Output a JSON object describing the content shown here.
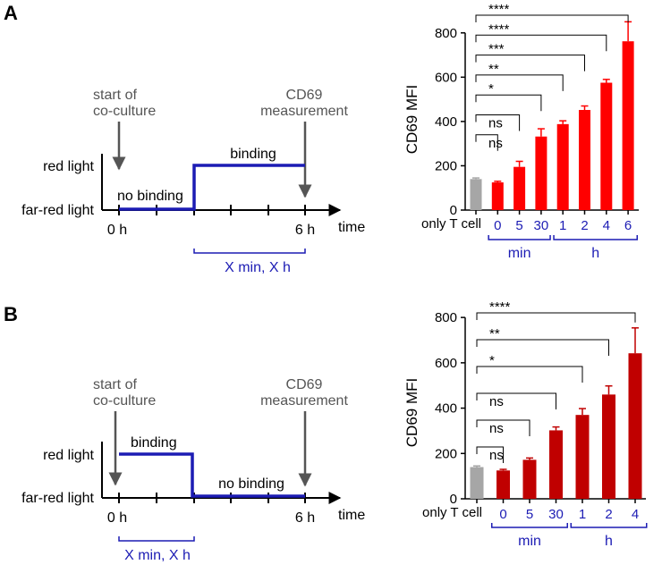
{
  "panels": [
    {
      "label": "A",
      "diagram": {
        "start_label_1": "start of",
        "start_label_2": "co-culture",
        "end_label_1": "CD69",
        "end_label_2": "measurement",
        "y_high": "red light",
        "y_low": "far-red light",
        "left_state": "no binding",
        "right_state": "binding",
        "t0": "0 h",
        "t6": "6 h",
        "time_label": "time",
        "bracket_label": "X min, X h"
      },
      "group_labels": {
        "min": "min",
        "h": "h"
      }
    },
    {
      "label": "B",
      "diagram": {
        "start_label_1": "start of",
        "start_label_2": "co-culture",
        "end_label_1": "CD69",
        "end_label_2": "measurement",
        "y_high": "red light",
        "y_low": "far-red light",
        "left_state": "binding",
        "right_state": "no binding",
        "t0": "0 h",
        "t6": "6 h",
        "time_label": "time",
        "bracket_label": "X min, X h"
      },
      "group_labels": {
        "min": "min",
        "h": "h"
      }
    }
  ],
  "chart_data": [
    {
      "type": "bar",
      "panel": "A",
      "ylabel": "CD69 MFI",
      "ylim": [
        0,
        900
      ],
      "yticks": [
        0,
        200,
        400,
        600,
        800
      ],
      "categories": [
        "only T cell",
        "0",
        "5",
        "30",
        "1",
        "2",
        "4",
        "6"
      ],
      "values": [
        140,
        125,
        195,
        332,
        388,
        452,
        575,
        762
      ],
      "errors": [
        5,
        5,
        25,
        35,
        15,
        18,
        15,
        88
      ],
      "colors": [
        "#a6a6a6",
        "#ff0000",
        "#ff0000",
        "#ff0000",
        "#ff0000",
        "#ff0000",
        "#ff0000",
        "#ff0000"
      ],
      "groups": [
        {
          "label": "min",
          "from": 1,
          "to": 3
        },
        {
          "label": "h",
          "from": 4,
          "to": 7
        }
      ],
      "significance": [
        {
          "to": 1,
          "label": "ns"
        },
        {
          "to": 2,
          "label": "ns"
        },
        {
          "to": 3,
          "label": "*"
        },
        {
          "to": 4,
          "label": "**"
        },
        {
          "to": 5,
          "label": "***"
        },
        {
          "to": 6,
          "label": "****"
        },
        {
          "to": 7,
          "label": "****"
        }
      ]
    },
    {
      "type": "bar",
      "panel": "B",
      "ylabel": "CD69 MFI",
      "ylim": [
        0,
        840
      ],
      "yticks": [
        0,
        200,
        400,
        600,
        800
      ],
      "categories": [
        "only T cell",
        "0",
        "5",
        "30",
        "1",
        "2",
        "4"
      ],
      "values": [
        140,
        125,
        172,
        302,
        370,
        460,
        642
      ],
      "errors": [
        5,
        5,
        8,
        15,
        28,
        38,
        112
      ],
      "colors": [
        "#a6a6a6",
        "#c00000",
        "#c00000",
        "#c00000",
        "#c00000",
        "#c00000",
        "#c00000"
      ],
      "groups": [
        {
          "label": "min",
          "from": 1,
          "to": 3
        },
        {
          "label": "h",
          "from": 4,
          "to": 6
        }
      ],
      "significance": [
        {
          "to": 1,
          "label": "ns"
        },
        {
          "to": 2,
          "label": "ns"
        },
        {
          "to": 3,
          "label": "ns"
        },
        {
          "to": 4,
          "label": "*"
        },
        {
          "to": 5,
          "label": "**"
        },
        {
          "to": 6,
          "label": "****"
        }
      ]
    }
  ]
}
